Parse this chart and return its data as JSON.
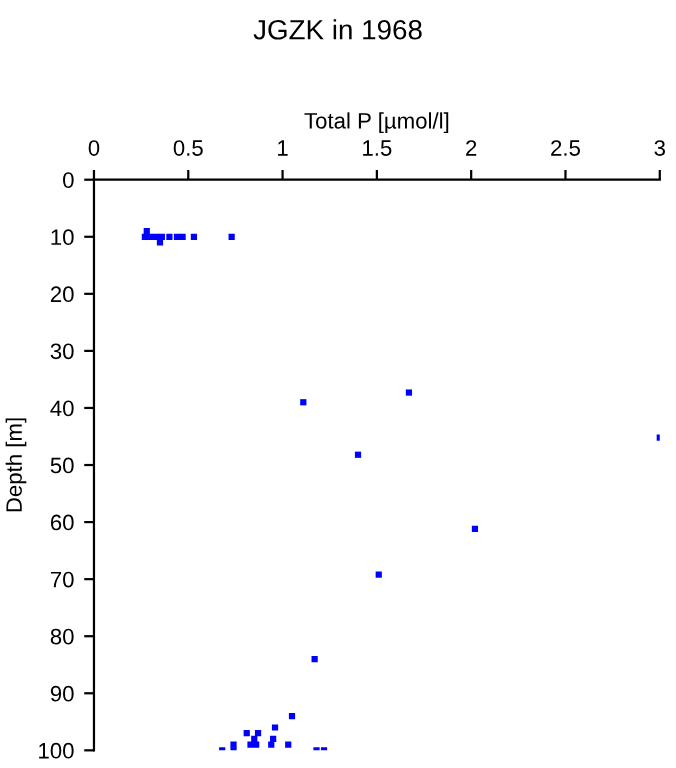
{
  "chart_data": {
    "type": "scatter",
    "title": "JGZK in 1968",
    "xlabel": "Total P [µmol/l]",
    "ylabel": "Depth [m]",
    "x": [
      0.27,
      0.28,
      0.3,
      0.33,
      0.35,
      0.36,
      0.4,
      0.44,
      0.47,
      0.53,
      0.73,
      1.11,
      1.67,
      3.0,
      1.4,
      2.02,
      1.51,
      1.17,
      1.05,
      0.96,
      0.81,
      0.87,
      0.85,
      0.83,
      0.86,
      0.95,
      0.94,
      1.03,
      0.74,
      0.74,
      0.68,
      1.18,
      1.22
    ],
    "values": [
      10,
      9,
      10,
      10,
      11,
      10,
      10,
      10,
      10,
      10,
      10,
      39,
      37.3,
      45.2,
      48.2,
      61.2,
      69.2,
      84,
      94,
      96,
      97,
      97,
      98,
      99,
      99,
      98,
      99,
      99,
      99,
      100,
      100,
      100,
      100
    ],
    "color": "#0000ff",
    "marker": "square",
    "xlim": [
      0,
      3
    ],
    "xticks": [
      0,
      0.5,
      1,
      1.5,
      2,
      2.5,
      3
    ],
    "ylim": [
      100,
      0
    ],
    "yticks": [
      0,
      10,
      20,
      30,
      40,
      50,
      60,
      70,
      80,
      90,
      100
    ],
    "grid": false
  }
}
